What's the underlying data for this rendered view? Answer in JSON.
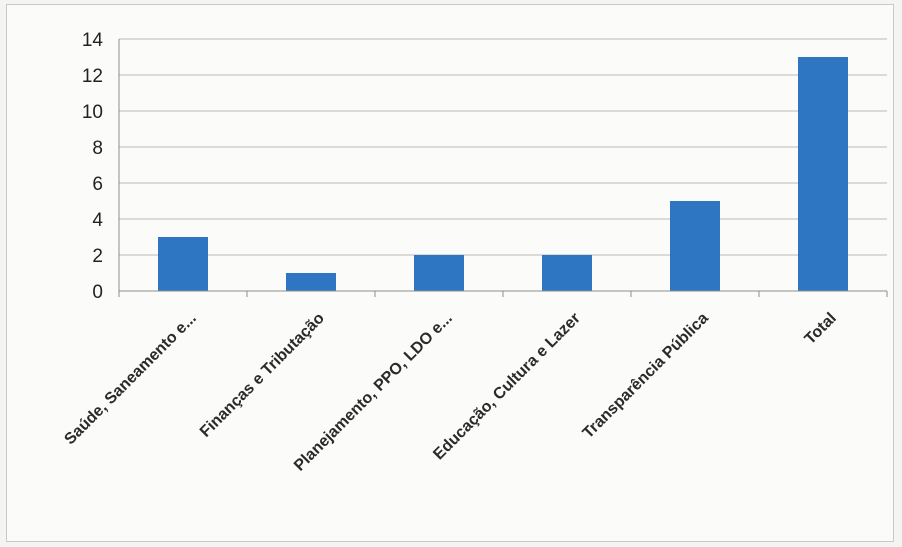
{
  "chart_data": {
    "type": "bar",
    "categories": [
      "Saúde, Saneamento e...",
      "Finanças e Tributação",
      "Planejamento, PPO, LDO e...",
      "Educação, Cultura e Lazer",
      "Transparência Pública",
      "Total"
    ],
    "values": [
      3,
      1,
      2,
      2,
      5,
      13
    ],
    "ylim": [
      0,
      14
    ],
    "yticks": [
      0,
      2,
      4,
      6,
      8,
      10,
      12,
      14
    ],
    "grid": true,
    "legend": "none",
    "bar_color": "#2e75c2",
    "title": "",
    "xlabel": "",
    "ylabel": ""
  }
}
